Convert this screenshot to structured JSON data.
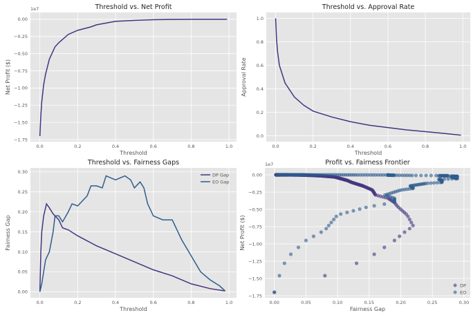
{
  "colors": {
    "dp": "#45337f",
    "eo": "#2e5c8e",
    "bg": "#e5e5e5"
  },
  "chart_data": [
    {
      "type": "line",
      "title": "Threshold vs. Net Profit",
      "xlabel": "Threshold",
      "ylabel": "Net Profit ($)",
      "offset_label": "1e7",
      "xlim": [
        -0.05,
        1.04
      ],
      "ylim": [
        -1.78,
        0.1
      ],
      "xticks": [
        0.0,
        0.2,
        0.4,
        0.6,
        0.8,
        1.0
      ],
      "xtick_labels": [
        "0.0",
        "0.2",
        "0.4",
        "0.6",
        "0.8",
        "1.0"
      ],
      "yticks": [
        0,
        -0.25,
        -0.5,
        -0.75,
        -1.0,
        -1.25,
        -1.5,
        -1.75
      ],
      "ytick_labels": [
        "0.00",
        "−0.25",
        "−0.50",
        "−0.75",
        "−1.00",
        "−1.25",
        "−1.50",
        "−1.75"
      ],
      "series": [
        {
          "name": "Net Profit",
          "color": "dp",
          "x": [
            0,
            0.005,
            0.01,
            0.02,
            0.03,
            0.05,
            0.08,
            0.1,
            0.15,
            0.2,
            0.27,
            0.3,
            0.4,
            0.5,
            0.6,
            0.7,
            0.8,
            0.99
          ],
          "y": [
            -1.7,
            -1.4,
            -1.2,
            -0.95,
            -0.8,
            -0.58,
            -0.4,
            -0.34,
            -0.22,
            -0.16,
            -0.11,
            -0.08,
            -0.03,
            -0.015,
            -0.006,
            -0.002,
            0,
            0
          ]
        }
      ]
    },
    {
      "type": "line",
      "title": "Threshold vs. Approval Rate",
      "xlabel": "Threshold",
      "ylabel": "Approval Rate",
      "xlim": [
        -0.05,
        1.04
      ],
      "ylim": [
        -0.05,
        1.05
      ],
      "xticks": [
        0.0,
        0.2,
        0.4,
        0.6,
        0.8,
        1.0
      ],
      "xtick_labels": [
        "0.0",
        "0.2",
        "0.4",
        "0.6",
        "0.8",
        "1.0"
      ],
      "yticks": [
        0,
        0.2,
        0.4,
        0.6,
        0.8,
        1.0
      ],
      "ytick_labels": [
        "0.0",
        "0.2",
        "0.4",
        "0.6",
        "0.8",
        "1.0"
      ],
      "series": [
        {
          "name": "Approval Rate",
          "color": "dp",
          "x": [
            0,
            0.005,
            0.01,
            0.02,
            0.05,
            0.1,
            0.15,
            0.2,
            0.3,
            0.4,
            0.5,
            0.6,
            0.7,
            0.8,
            0.9,
            0.99
          ],
          "y": [
            1.0,
            0.82,
            0.72,
            0.6,
            0.45,
            0.33,
            0.26,
            0.21,
            0.16,
            0.12,
            0.09,
            0.07,
            0.05,
            0.035,
            0.02,
            0.005
          ]
        }
      ]
    },
    {
      "type": "line",
      "title": "Threshold vs. Fairness Gaps",
      "xlabel": "Threshold",
      "ylabel": "Fairness Gap",
      "legend": "top-right",
      "xlim": [
        -0.05,
        1.04
      ],
      "ylim": [
        -0.015,
        0.31
      ],
      "xticks": [
        0.0,
        0.2,
        0.4,
        0.6,
        0.8,
        1.0
      ],
      "xtick_labels": [
        "0.0",
        "0.2",
        "0.4",
        "0.6",
        "0.8",
        "1.0"
      ],
      "yticks": [
        0,
        0.05,
        0.1,
        0.15,
        0.2,
        0.25,
        0.3
      ],
      "ytick_labels": [
        "0.00",
        "0.05",
        "0.10",
        "0.15",
        "0.20",
        "0.25",
        "0.30"
      ],
      "series": [
        {
          "name": "DP Gap",
          "color": "dp",
          "x": [
            0,
            0.005,
            0.01,
            0.02,
            0.035,
            0.05,
            0.07,
            0.1,
            0.12,
            0.15,
            0.2,
            0.3,
            0.4,
            0.5,
            0.6,
            0.7,
            0.8,
            0.9,
            0.98
          ],
          "y": [
            0,
            0.1,
            0.15,
            0.19,
            0.22,
            0.21,
            0.195,
            0.18,
            0.16,
            0.155,
            0.14,
            0.115,
            0.095,
            0.075,
            0.055,
            0.04,
            0.02,
            0.008,
            0.002
          ]
        },
        {
          "name": "EO Gap",
          "color": "eo",
          "x": [
            0,
            0.01,
            0.03,
            0.05,
            0.07,
            0.08,
            0.1,
            0.12,
            0.15,
            0.17,
            0.2,
            0.25,
            0.27,
            0.3,
            0.33,
            0.35,
            0.4,
            0.45,
            0.48,
            0.5,
            0.53,
            0.55,
            0.57,
            0.6,
            0.65,
            0.7,
            0.72,
            0.75,
            0.8,
            0.85,
            0.9,
            0.95,
            0.98
          ],
          "y": [
            0,
            0.02,
            0.08,
            0.1,
            0.15,
            0.19,
            0.19,
            0.175,
            0.2,
            0.22,
            0.215,
            0.24,
            0.265,
            0.265,
            0.26,
            0.29,
            0.28,
            0.29,
            0.28,
            0.26,
            0.275,
            0.26,
            0.22,
            0.19,
            0.18,
            0.18,
            0.16,
            0.13,
            0.09,
            0.05,
            0.03,
            0.015,
            0.002
          ]
        }
      ]
    },
    {
      "type": "scatter",
      "title": "Profit vs. Fairness Frontier",
      "xlabel": "Fairness Gap",
      "ylabel": "Net Profit ($)",
      "offset_label": "1e7",
      "legend": "bottom-right",
      "note": "points pair each threshold's fairness gap (panel 3) with its net profit (panel 1)",
      "xlim": [
        -0.015,
        0.31
      ],
      "ylim": [
        -1.78,
        0.1
      ],
      "xticks": [
        0,
        0.05,
        0.1,
        0.15,
        0.2,
        0.25,
        0.3
      ],
      "xtick_labels": [
        "0.00",
        "0.05",
        "0.10",
        "0.15",
        "0.20",
        "0.25",
        "0.30"
      ],
      "yticks": [
        0,
        -0.25,
        -0.5,
        -0.75,
        -1.0,
        -1.25,
        -1.5,
        -1.75
      ],
      "ytick_labels": [
        "0.00",
        "−0.25",
        "−0.50",
        "−0.75",
        "−1.00",
        "−1.25",
        "−1.50",
        "−1.75"
      ],
      "series": [
        {
          "name": "DP",
          "color": "dp"
        },
        {
          "name": "EO",
          "color": "eo"
        }
      ]
    }
  ]
}
